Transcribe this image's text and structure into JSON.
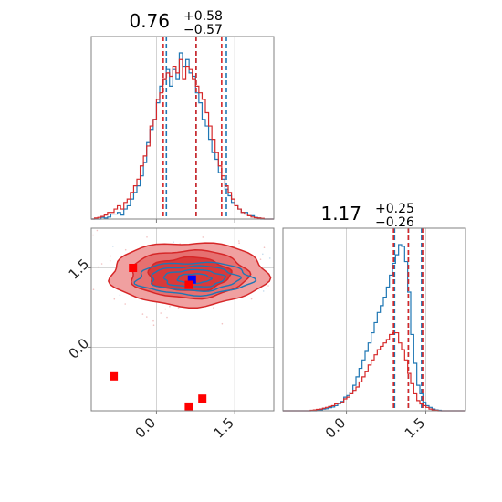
{
  "chart_data": {
    "type": "corner",
    "title_1": {
      "value": "0.76",
      "plus": "+0.58",
      "minus": "−0.57"
    },
    "title_2": {
      "value": "1.17",
      "plus": "+0.25",
      "minus": "−0.26"
    },
    "param1_range": [
      -1.25,
      2.25
    ],
    "param2_range": [
      -1.2,
      2.25
    ],
    "param1_ticks": [
      "0.0",
      "1.5"
    ],
    "param2_ticks": [
      "0.0",
      "1.5"
    ],
    "param1_tick_values": [
      0.0,
      1.5
    ],
    "param2_tick_values": [
      0.0,
      1.5
    ],
    "colors": {
      "blue": "#1f77b4",
      "red": "#d62728",
      "grid": "#c8c8c8",
      "axis": "#808080",
      "tick_text": "#222222"
    },
    "series": [
      {
        "color": "#1f77b4",
        "hist1": [
          0,
          0,
          0,
          0.5,
          0.3,
          0.6,
          1.5,
          1.5,
          2,
          1.2,
          3,
          4,
          6,
          8,
          10,
          13,
          17,
          23,
          27,
          30,
          35,
          40,
          42,
          45,
          40,
          45,
          42,
          50,
          46,
          48,
          44,
          43,
          38,
          35,
          30,
          28,
          24,
          20,
          18,
          14,
          12,
          9,
          7,
          5,
          4,
          3,
          2,
          2,
          1,
          1,
          0.5,
          0.3,
          0,
          0,
          0,
          0
        ],
        "quantiles1": [
          0.19,
          0.76,
          1.34
        ],
        "hist2": [
          0,
          0,
          0,
          0,
          0,
          0,
          0,
          0,
          0,
          0,
          0,
          0.5,
          0.6,
          1,
          1.2,
          1.8,
          2.2,
          3,
          4.2,
          5.5,
          8,
          9,
          11,
          15,
          20,
          25,
          30,
          35,
          40,
          46,
          52,
          58,
          62,
          67,
          73,
          80,
          87,
          92,
          98,
          97,
          88,
          70,
          45,
          28,
          15,
          10,
          5,
          3,
          2,
          1,
          0.5,
          0.3,
          0,
          0,
          0,
          0,
          0,
          0,
          0,
          0
        ],
        "quantiles2": [
          0.91,
          1.17,
          1.42
        ],
        "center": [
          0.72,
          1.3
        ],
        "sigma": [
          0.58,
          0.16
        ]
      },
      {
        "color": "#d62728",
        "hist1": [
          0,
          0.3,
          0.5,
          0.8,
          1.2,
          2,
          2,
          3,
          4,
          3,
          5,
          6,
          8,
          10,
          12,
          16,
          19,
          22,
          28,
          30,
          36,
          38,
          42,
          44,
          43,
          46,
          44,
          48,
          42,
          46,
          45,
          42,
          40,
          38,
          36,
          32,
          28,
          24,
          20,
          16,
          13,
          10,
          8,
          6,
          4,
          3,
          2,
          1.5,
          1,
          0.6,
          0.4,
          0.3,
          0.2,
          0,
          0,
          0
        ],
        "quantiles1": [
          0.13,
          0.76,
          1.25
        ],
        "hist2": [
          0,
          0,
          0,
          0,
          0,
          0,
          0,
          0,
          0,
          0.3,
          0.5,
          0.8,
          1,
          1.5,
          2,
          2.5,
          3,
          4,
          4.5,
          5,
          7,
          8,
          10,
          12,
          14,
          17,
          20,
          23,
          27,
          30,
          33,
          36,
          38,
          40,
          42,
          45,
          46,
          46,
          40,
          36,
          30,
          22,
          16,
          10,
          6,
          4,
          3,
          2,
          1,
          0.5,
          0.3,
          0,
          0,
          0,
          0,
          0,
          0,
          0,
          0,
          0
        ],
        "quantiles2": [
          0.89,
          1.17,
          1.44
        ],
        "center": [
          0.62,
          1.38
        ],
        "sigma": [
          0.75,
          0.3
        ]
      }
    ],
    "markers": [
      {
        "color": "#0000ff",
        "points": [
          [
            0.68,
            1.28
          ]
        ]
      },
      {
        "color": "#ff0000",
        "points": [
          [
            -0.45,
            1.5
          ],
          [
            0.62,
            1.18
          ],
          [
            -0.82,
            -0.55
          ],
          [
            0.88,
            -0.97
          ],
          [
            0.62,
            -1.12
          ]
        ]
      }
    ]
  }
}
